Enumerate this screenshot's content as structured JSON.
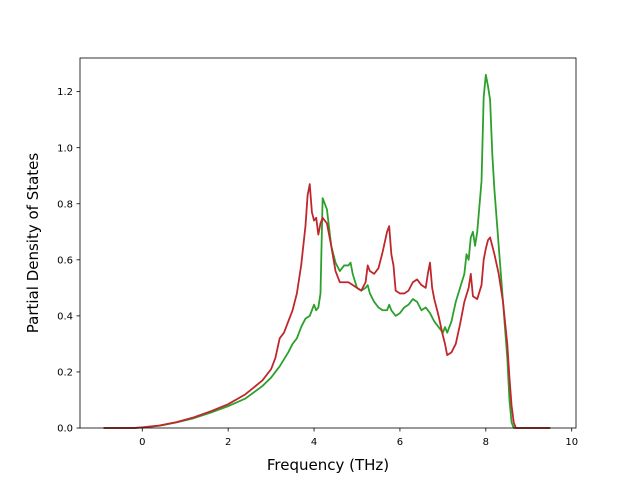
{
  "chart_data": {
    "type": "line",
    "xlabel": "Frequency (THz)",
    "ylabel": "Partial Density of States",
    "xlim": [
      -1.45,
      10.1
    ],
    "ylim": [
      0.0,
      1.32
    ],
    "xticks": [
      0,
      2,
      4,
      6,
      8,
      10
    ],
    "yticks": [
      0.0,
      0.2,
      0.4,
      0.6,
      0.8,
      1.0,
      1.2
    ],
    "grid": false,
    "series": [
      {
        "color": "#2ca02c",
        "x": [
          -0.9,
          -0.2,
          0.0,
          0.4,
          0.8,
          1.2,
          1.6,
          2.0,
          2.4,
          2.8,
          3.0,
          3.2,
          3.4,
          3.5,
          3.6,
          3.7,
          3.8,
          3.9,
          4.0,
          4.05,
          4.1,
          4.15,
          4.2,
          4.3,
          4.4,
          4.5,
          4.6,
          4.7,
          4.8,
          4.85,
          4.9,
          5.0,
          5.1,
          5.2,
          5.25,
          5.3,
          5.4,
          5.5,
          5.6,
          5.7,
          5.75,
          5.8,
          5.9,
          6.0,
          6.1,
          6.2,
          6.3,
          6.4,
          6.5,
          6.6,
          6.7,
          6.8,
          6.9,
          7.0,
          7.05,
          7.1,
          7.2,
          7.3,
          7.4,
          7.5,
          7.55,
          7.6,
          7.65,
          7.7,
          7.75,
          7.8,
          7.9,
          7.95,
          8.0,
          8.05,
          8.1,
          8.15,
          8.2,
          8.3,
          8.4,
          8.5,
          8.55,
          8.6,
          8.65,
          8.7,
          9.5
        ],
        "y": [
          0.0,
          0.0,
          0.002,
          0.008,
          0.02,
          0.035,
          0.055,
          0.078,
          0.105,
          0.15,
          0.18,
          0.22,
          0.27,
          0.3,
          0.32,
          0.36,
          0.39,
          0.4,
          0.44,
          0.42,
          0.43,
          0.48,
          0.82,
          0.78,
          0.65,
          0.59,
          0.56,
          0.58,
          0.58,
          0.59,
          0.55,
          0.5,
          0.49,
          0.5,
          0.51,
          0.48,
          0.45,
          0.43,
          0.42,
          0.42,
          0.44,
          0.42,
          0.4,
          0.41,
          0.43,
          0.44,
          0.46,
          0.45,
          0.42,
          0.43,
          0.41,
          0.38,
          0.36,
          0.34,
          0.36,
          0.34,
          0.38,
          0.45,
          0.5,
          0.55,
          0.62,
          0.6,
          0.68,
          0.7,
          0.65,
          0.7,
          0.88,
          1.18,
          1.26,
          1.22,
          1.17,
          0.98,
          0.85,
          0.65,
          0.45,
          0.25,
          0.1,
          0.02,
          0.0,
          0.0,
          0.0
        ]
      },
      {
        "color": "#c0272d",
        "x": [
          -0.9,
          -0.2,
          0.0,
          0.4,
          0.8,
          1.2,
          1.6,
          2.0,
          2.4,
          2.8,
          3.0,
          3.1,
          3.2,
          3.3,
          3.4,
          3.5,
          3.6,
          3.7,
          3.8,
          3.85,
          3.9,
          3.95,
          4.0,
          4.05,
          4.1,
          4.15,
          4.2,
          4.3,
          4.4,
          4.5,
          4.6,
          4.7,
          4.8,
          4.9,
          5.0,
          5.1,
          5.2,
          5.25,
          5.3,
          5.4,
          5.5,
          5.6,
          5.7,
          5.75,
          5.8,
          5.85,
          5.9,
          6.0,
          6.1,
          6.2,
          6.3,
          6.4,
          6.5,
          6.6,
          6.65,
          6.7,
          6.75,
          6.8,
          6.9,
          7.0,
          7.05,
          7.1,
          7.2,
          7.3,
          7.4,
          7.5,
          7.6,
          7.65,
          7.7,
          7.8,
          7.9,
          7.95,
          8.0,
          8.05,
          8.1,
          8.2,
          8.3,
          8.4,
          8.5,
          8.55,
          8.6,
          8.65,
          8.7,
          9.5
        ],
        "y": [
          0.0,
          0.0,
          0.002,
          0.009,
          0.021,
          0.038,
          0.06,
          0.085,
          0.12,
          0.17,
          0.21,
          0.25,
          0.32,
          0.34,
          0.38,
          0.42,
          0.48,
          0.58,
          0.72,
          0.83,
          0.87,
          0.77,
          0.74,
          0.75,
          0.69,
          0.73,
          0.75,
          0.73,
          0.65,
          0.56,
          0.52,
          0.52,
          0.52,
          0.51,
          0.5,
          0.49,
          0.52,
          0.58,
          0.56,
          0.55,
          0.57,
          0.63,
          0.7,
          0.72,
          0.62,
          0.58,
          0.49,
          0.48,
          0.48,
          0.49,
          0.52,
          0.53,
          0.51,
          0.5,
          0.55,
          0.59,
          0.5,
          0.46,
          0.4,
          0.33,
          0.3,
          0.26,
          0.27,
          0.3,
          0.37,
          0.45,
          0.5,
          0.55,
          0.47,
          0.46,
          0.51,
          0.6,
          0.64,
          0.67,
          0.68,
          0.62,
          0.55,
          0.45,
          0.3,
          0.18,
          0.08,
          0.02,
          0.0,
          0.0
        ]
      }
    ]
  }
}
